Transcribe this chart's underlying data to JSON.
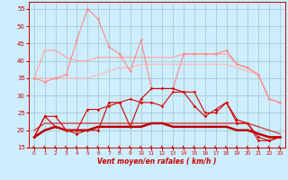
{
  "xlabel": "Vent moyen/en rafales ( km/h )",
  "bg_color": "#cceeff",
  "grid_color": "#aacccc",
  "ylim": [
    15,
    57
  ],
  "xlim": [
    -0.5,
    23.5
  ],
  "yticks": [
    15,
    20,
    25,
    30,
    35,
    40,
    45,
    50,
    55
  ],
  "xticks": [
    0,
    1,
    2,
    3,
    4,
    5,
    6,
    7,
    8,
    9,
    10,
    11,
    12,
    13,
    14,
    15,
    16,
    17,
    18,
    19,
    20,
    21,
    22,
    23
  ],
  "series": [
    {
      "x": [
        0,
        1,
        2,
        3,
        4,
        5,
        6,
        7,
        8,
        9,
        10,
        11,
        12,
        13,
        14,
        15,
        16,
        17,
        18,
        19,
        20,
        21,
        22,
        23
      ],
      "y": [
        35,
        43,
        43,
        41,
        40,
        40,
        41,
        41,
        41,
        41,
        41,
        41,
        41,
        41,
        42,
        42,
        42,
        42,
        42,
        39,
        38,
        36,
        29,
        28
      ],
      "color": "#ffaaaa",
      "lw": 1.0,
      "marker": null,
      "ms": 0,
      "zorder": 2
    },
    {
      "x": [
        0,
        1,
        2,
        3,
        4,
        5,
        6,
        7,
        8,
        9,
        10,
        11,
        12,
        13,
        14,
        15,
        16,
        17,
        18,
        19,
        20,
        21,
        22,
        23
      ],
      "y": [
        35,
        35,
        35,
        35,
        35,
        35,
        36,
        37,
        38,
        38,
        39,
        39,
        39,
        39,
        39,
        39,
        39,
        39,
        39,
        38,
        37,
        36,
        29,
        28
      ],
      "color": "#ffbbbb",
      "lw": 1.0,
      "marker": null,
      "ms": 0,
      "zorder": 2
    },
    {
      "x": [
        0,
        1,
        2,
        3,
        4,
        5,
        6,
        7,
        8,
        9,
        10,
        11,
        12,
        13,
        14,
        15,
        16,
        17,
        18,
        19,
        20,
        21,
        22,
        23
      ],
      "y": [
        35,
        34,
        35,
        36,
        46,
        55,
        52,
        44,
        42,
        37,
        46,
        32,
        32,
        32,
        42,
        42,
        42,
        42,
        43,
        39,
        38,
        36,
        29,
        28
      ],
      "color": "#ff8888",
      "lw": 0.8,
      "marker": "D",
      "ms": 1.8,
      "zorder": 3
    },
    {
      "x": [
        0,
        1,
        2,
        3,
        4,
        5,
        6,
        7,
        8,
        9,
        10,
        11,
        12,
        13,
        14,
        15,
        16,
        17,
        18,
        19,
        20,
        21,
        22,
        23
      ],
      "y": [
        20,
        22,
        22,
        22,
        22,
        22,
        22,
        22,
        22,
        22,
        22,
        22,
        22,
        22,
        22,
        22,
        22,
        22,
        22,
        22,
        22,
        21,
        20,
        19
      ],
      "color": "#cc4444",
      "lw": 1.0,
      "marker": null,
      "ms": 0,
      "zorder": 2
    },
    {
      "x": [
        0,
        1,
        2,
        3,
        4,
        5,
        6,
        7,
        8,
        9,
        10,
        11,
        12,
        13,
        14,
        15,
        16,
        17,
        18,
        19,
        20,
        21,
        22,
        23
      ],
      "y": [
        18,
        20,
        21,
        20,
        20,
        20,
        21,
        21,
        21,
        21,
        21,
        22,
        22,
        21,
        21,
        21,
        21,
        21,
        21,
        20,
        20,
        19,
        18,
        18
      ],
      "color": "#bb0000",
      "lw": 1.8,
      "marker": null,
      "ms": 0,
      "zorder": 3
    },
    {
      "x": [
        0,
        1,
        2,
        3,
        4,
        5,
        6,
        7,
        8,
        9,
        10,
        11,
        12,
        13,
        14,
        15,
        16,
        17,
        18,
        19,
        20,
        21,
        22,
        23
      ],
      "y": [
        18,
        24,
        21,
        20,
        19,
        20,
        20,
        28,
        28,
        21,
        29,
        32,
        32,
        32,
        31,
        27,
        24,
        26,
        28,
        23,
        22,
        18,
        17,
        18
      ],
      "color": "#cc0000",
      "lw": 0.8,
      "marker": "D",
      "ms": 1.8,
      "zorder": 4
    },
    {
      "x": [
        0,
        1,
        2,
        3,
        4,
        5,
        6,
        7,
        8,
        9,
        10,
        11,
        12,
        13,
        14,
        15,
        16,
        17,
        18,
        19,
        20,
        21,
        22,
        23
      ],
      "y": [
        18,
        24,
        24,
        20,
        20,
        26,
        26,
        27,
        28,
        29,
        28,
        28,
        27,
        31,
        31,
        31,
        25,
        25,
        28,
        22,
        22,
        17,
        17,
        18
      ],
      "color": "#dd0000",
      "lw": 0.8,
      "marker": "D",
      "ms": 1.8,
      "zorder": 4
    }
  ]
}
